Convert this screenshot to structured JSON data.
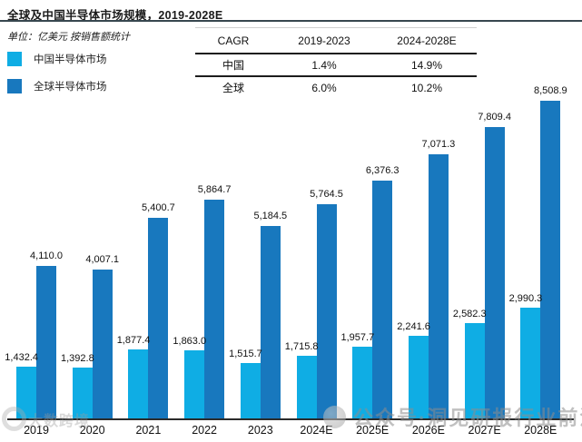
{
  "header": {
    "title": "全球及中国半导体市场规模，2019-2028E",
    "unit_note": "单位：亿美元 按销售额统计"
  },
  "legend": [
    {
      "label": "中国半导体市场",
      "color": "#0fade4"
    },
    {
      "label": "全球半导体市场",
      "color": "#1878be"
    }
  ],
  "cagr_table": {
    "headers": [
      "CAGR",
      "2019-2023",
      "2024-2028E"
    ],
    "rows": [
      {
        "name": "中国",
        "values": [
          "1.4%",
          "14.9%"
        ]
      },
      {
        "name": "全球",
        "values": [
          "6.0%",
          "10.2%"
        ]
      }
    ]
  },
  "chart_data": {
    "type": "bar",
    "title": "全球及中国半导体市场规模，2019-2028E",
    "unit": "亿美元",
    "categories": [
      "2019",
      "2020",
      "2021",
      "2022",
      "2023",
      "2024E",
      "2025E",
      "2026E",
      "2027E",
      "2028E"
    ],
    "series": [
      {
        "name": "中国半导体市场",
        "color": "#0fade4",
        "values": [
          1432.4,
          1392.8,
          1877.4,
          1863.0,
          1515.7,
          1715.8,
          1957.7,
          2241.6,
          2582.3,
          2990.3
        ],
        "labels": [
          "1,432.4",
          "1,392.8",
          "1,877.4",
          "1,863.0",
          "1,515.7",
          "1,715.8",
          "1,957.7",
          "2,241.6",
          "2,582.3",
          "2,990.3"
        ]
      },
      {
        "name": "全球半导体市场",
        "color": "#1878be",
        "values": [
          4110.0,
          4007.1,
          5400.7,
          5864.7,
          5184.5,
          5764.5,
          6376.3,
          7071.3,
          7809.4,
          8508.9
        ],
        "labels": [
          "4,110.0",
          "4,007.1",
          "5,400.7",
          "5,864.7",
          "5,184.5",
          "5,764.5",
          "6,376.3",
          "7,071.3",
          "7,809.4",
          "8,508.9"
        ]
      }
    ],
    "ylim": [
      0,
      8600
    ],
    "grid": false,
    "legend_position": "top-left",
    "value_labels": true
  },
  "watermarks": {
    "bottom_left": "大数跨境",
    "bottom_right": "公众号·洞见研报行业前沿"
  }
}
